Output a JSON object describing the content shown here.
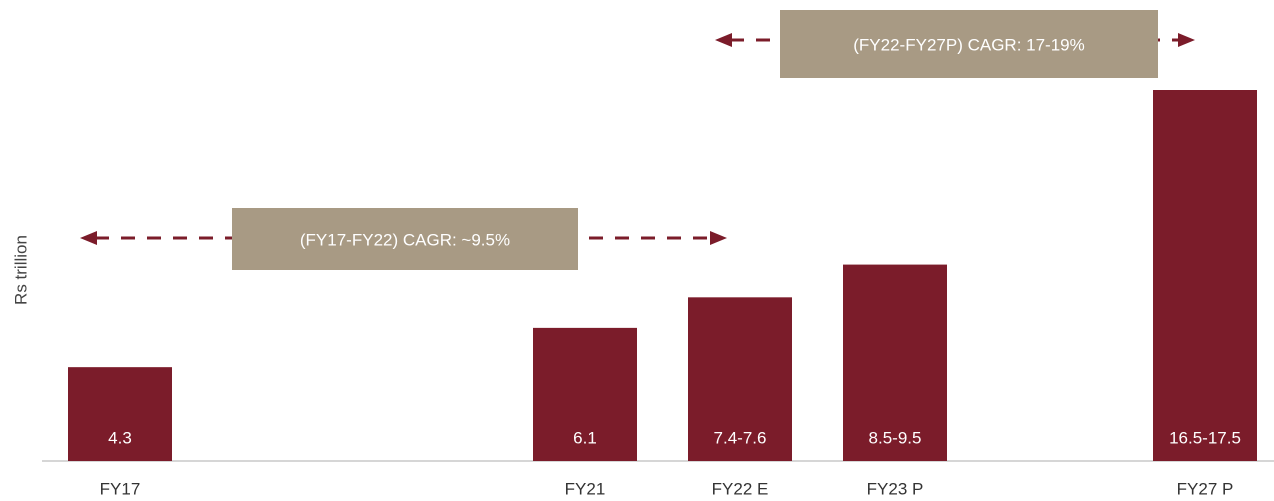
{
  "chart_data": {
    "type": "bar",
    "y_label": "Rs trillion",
    "categories": [
      "FY17",
      null,
      null,
      "FY21",
      "FY22 E",
      "FY23 P",
      null,
      "FY27 P"
    ],
    "values": [
      4.3,
      null,
      null,
      6.1,
      7.5,
      9,
      null,
      17
    ],
    "value_labels": [
      "4.3",
      null,
      null,
      "6.1",
      "7.4-7.6",
      "8.5-9.5",
      null,
      "16.5-17.5"
    ],
    "color": "#7b1c2a",
    "annotations": [
      "(FY17-FY22) CAGR: ~9.5%",
      "(FY22-FY27P) CAGR: 17-19%"
    ]
  }
}
